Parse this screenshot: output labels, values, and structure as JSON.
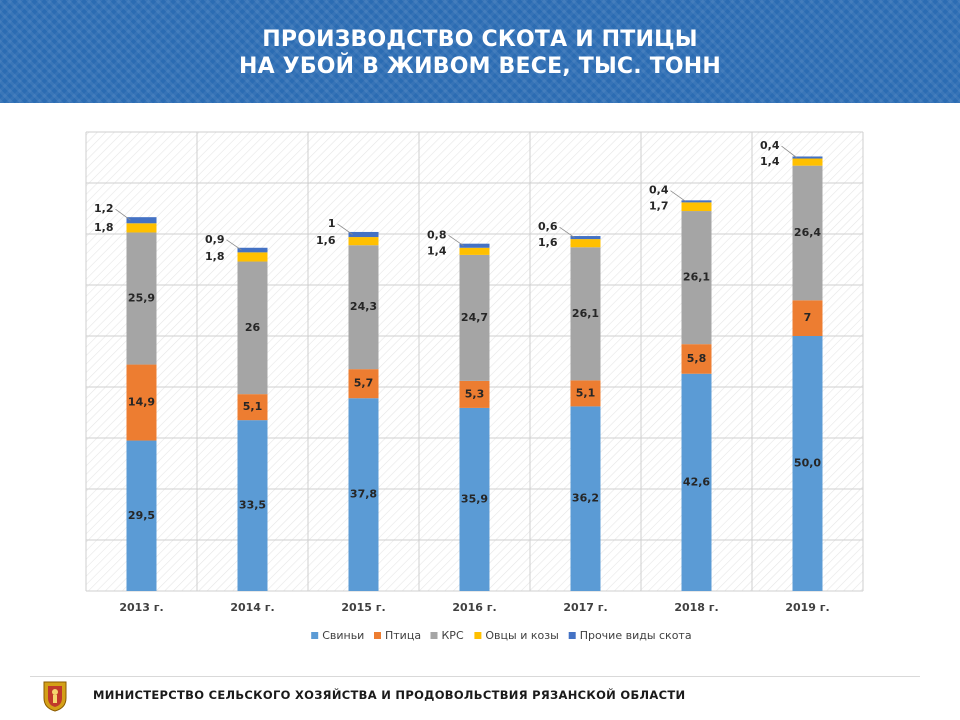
{
  "title": {
    "line1": "ПРОИЗВОДСТВО СКОТА И ПТИЦЫ",
    "line2": "НА УБОЙ В ЖИВОМ ВЕСЕ, ТЫС. ТОНН"
  },
  "footer": {
    "text": "МИНИСТЕРСТВО СЕЛЬСКОГО ХОЗЯЙСТВА И ПРОДОВОЛЬСТВИЯ РЯЗАНСКОЙ ОБЛАСТИ"
  },
  "colors": {
    "header": "#2b6cb3",
    "pigs": "#5b9bd5",
    "poultry": "#ed7d31",
    "cattle": "#a5a5a5",
    "sheep": "#ffc000",
    "other": "#4472c4"
  },
  "chart_data": {
    "type": "bar",
    "stacked": true,
    "categories": [
      "2013 г.",
      "2014 г.",
      "2015 г.",
      "2016 г.",
      "2017 г.",
      "2018 г.",
      "2019 г."
    ],
    "series": [
      {
        "name": "Свиньи",
        "color": "#5b9bd5",
        "values": [
          29.5,
          33.5,
          37.8,
          35.9,
          36.2,
          42.6,
          50.0
        ],
        "labels": [
          "29,5",
          "33,5",
          "37,8",
          "35,9",
          "36,2",
          "42,6",
          "50,0"
        ]
      },
      {
        "name": "Птица",
        "color": "#ed7d31",
        "values": [
          14.9,
          5.1,
          5.7,
          5.3,
          5.1,
          5.8,
          7
        ],
        "labels": [
          "14,9",
          "5,1",
          "5,7",
          "5,3",
          "5,1",
          "5,8",
          "7"
        ]
      },
      {
        "name": "КРС",
        "color": "#a5a5a5",
        "values": [
          25.9,
          26,
          24.3,
          24.7,
          26.1,
          26.1,
          26.4
        ],
        "labels": [
          "25,9",
          "26",
          "24,3",
          "24,7",
          "26,1",
          "26,1",
          "26,4"
        ]
      },
      {
        "name": "Овцы и козы",
        "color": "#ffc000",
        "values": [
          1.8,
          1.8,
          1.6,
          1.4,
          1.6,
          1.7,
          1.4
        ],
        "labels": [
          "1,8",
          "1,8",
          "1,6",
          "1,4",
          "1,6",
          "1,7",
          "1,4"
        ]
      },
      {
        "name": "Прочие виды скота",
        "color": "#4472c4",
        "values": [
          1.2,
          0.9,
          1,
          0.8,
          0.6,
          0.4,
          0.4
        ],
        "labels": [
          "1,2",
          "0,9",
          "1",
          "0,8",
          "0,6",
          "0,4",
          "0,4"
        ]
      }
    ],
    "ylim": [
      0,
      90
    ],
    "grid": true,
    "legend_position": "bottom"
  }
}
